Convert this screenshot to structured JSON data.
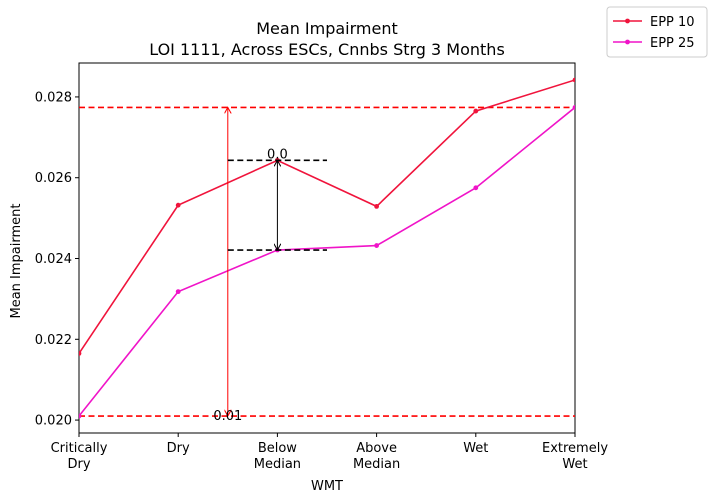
{
  "chart_data": {
    "type": "line",
    "title": "Mean Impairment",
    "subtitle": "LOI 1111, Across ESCs, Cnnbs Strg 3 Months",
    "xlabel": "WMT",
    "ylabel": "Mean Impairment",
    "categories": [
      "Critically\nDry",
      "Dry",
      "Below\nMedian",
      "Above\nMedian",
      "Wet",
      "Extremely\nWet"
    ],
    "ylim": [
      0.01968,
      0.02884
    ],
    "yticks": [
      0.02,
      0.022,
      0.024,
      0.026,
      0.028
    ],
    "ytick_labels": [
      "0.020",
      "0.022",
      "0.024",
      "0.026",
      "0.028"
    ],
    "grid": false,
    "legend_position": "outside top-right",
    "series": [
      {
        "name": "EPP 10",
        "color": "#f0143c",
        "values": [
          0.02165,
          0.02532,
          0.02643,
          0.02529,
          0.02765,
          0.02842
        ]
      },
      {
        "name": "EPP 25",
        "color": "#f014c8",
        "values": [
          0.0201,
          0.02318,
          0.02421,
          0.02432,
          0.02575,
          0.02774
        ]
      }
    ],
    "annotations": {
      "hlines": [
        {
          "y": 0.02774,
          "color": "#ff0000"
        },
        {
          "y": 0.0201,
          "color": "#ff0000"
        }
      ],
      "range_arrow": {
        "x": 1.5,
        "y_from": 0.0201,
        "y_to": 0.02774,
        "color": "#ff0000",
        "label": "0.01"
      },
      "diff_marker": {
        "x": 2,
        "x_from": 1.5,
        "x_to": 2.5,
        "y_top": 0.02643,
        "y_bottom": 0.02421,
        "color": "#000000",
        "label": "0.0"
      }
    }
  }
}
